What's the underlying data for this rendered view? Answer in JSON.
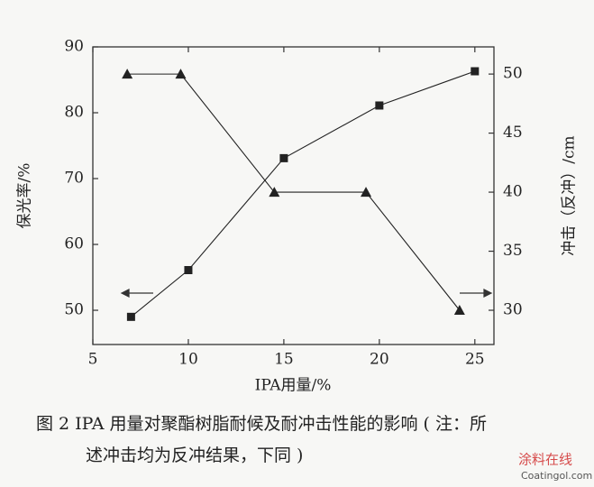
{
  "chart_data": {
    "type": "line",
    "xlabel": "IPA用量/%",
    "ylabel": "保光率/%",
    "y2label": "冲击（反冲）/cm",
    "caption": [
      "图 2 IPA 用量对聚酯树脂耐候及耐冲击性能的影响 ( 注：所",
      "述冲击均为反冲结果，下同 )"
    ],
    "watermark": [
      "涂料在线",
      "Coatingol.com"
    ],
    "xlim": [
      5,
      26
    ],
    "xticks": [
      5,
      10,
      15,
      20,
      25
    ],
    "ylim": [
      44.8,
      90
    ],
    "yticks": [
      50,
      60,
      70,
      80,
      90
    ],
    "y2lim": [
      27.1,
      52.3
    ],
    "y2ticks": [
      30,
      35,
      40,
      45,
      50
    ],
    "series": [
      {
        "color": "#222222",
        "marker": "square",
        "x": [
          7,
          10,
          15,
          20,
          25
        ],
        "values": [
          49,
          56.1,
          73.1,
          81.1,
          86.3
        ]
      },
      {
        "color": "#222222",
        "marker": "triangle",
        "axis": "y2",
        "x": [
          6.8,
          9.6,
          14.5,
          19.3,
          24.2
        ],
        "values": [
          50,
          50,
          40,
          40,
          30
        ]
      }
    ]
  }
}
